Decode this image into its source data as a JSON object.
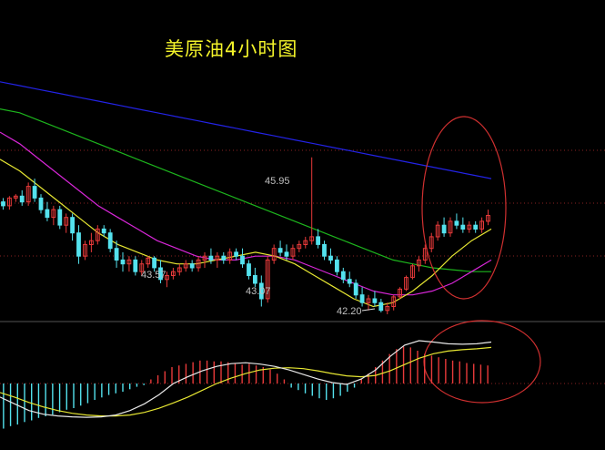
{
  "title": "美原油4小时图",
  "colors": {
    "background": "#000000",
    "up_candle": "#e83a3a",
    "down_candle": "#54e2ee",
    "ma_blue": "#2323e6",
    "ma_green": "#1db51d",
    "ma_magenta": "#d726d7",
    "ma_yellow": "#e6e632",
    "ma_white": "#e8e8e8",
    "grid": "#8a2222",
    "label": "#c0c0c0",
    "ellipse": "#d03030"
  },
  "chart_data": [
    {
      "type": "candlestick",
      "title": "美原油4小时图",
      "annotations": [
        {
          "text": "45.95",
          "at_value": 45.95
        },
        {
          "text": "43.57",
          "at_value": 43.57
        },
        {
          "text": "43.07",
          "at_value": 43.07
        },
        {
          "text": "42.20",
          "at_value": 42.2
        }
      ],
      "ylim": [
        41.9,
        48.6
      ],
      "grid": true,
      "candles": [
        [
          44.8,
          44.9,
          44.6,
          44.7
        ],
        [
          44.7,
          44.95,
          44.6,
          44.9
        ],
        [
          44.9,
          45.0,
          44.8,
          44.95
        ],
        [
          44.95,
          45.1,
          44.7,
          44.8
        ],
        [
          44.8,
          45.3,
          44.7,
          45.2
        ],
        [
          45.2,
          45.4,
          44.8,
          44.9
        ],
        [
          44.9,
          45.0,
          44.5,
          44.6
        ],
        [
          44.6,
          44.8,
          44.3,
          44.4
        ],
        [
          44.4,
          44.7,
          44.2,
          44.6
        ],
        [
          44.6,
          44.7,
          44.1,
          44.2
        ],
        [
          44.2,
          44.5,
          44.0,
          44.4
        ],
        [
          44.4,
          44.5,
          43.8,
          44.0
        ],
        [
          44.0,
          44.2,
          43.2,
          43.4
        ],
        [
          43.4,
          43.8,
          43.3,
          43.7
        ],
        [
          43.7,
          44.0,
          43.5,
          43.8
        ],
        [
          43.8,
          44.2,
          43.7,
          44.1
        ],
        [
          44.1,
          44.2,
          43.9,
          44.0
        ],
        [
          44.0,
          44.1,
          43.5,
          43.6
        ],
        [
          43.6,
          43.8,
          43.1,
          43.3
        ],
        [
          43.3,
          43.5,
          43.0,
          43.2
        ],
        [
          43.2,
          43.4,
          43.0,
          43.3
        ],
        [
          43.3,
          43.4,
          42.9,
          43.0
        ],
        [
          43.0,
          43.3,
          42.9,
          43.2
        ],
        [
          43.2,
          43.4,
          43.1,
          43.35
        ],
        [
          43.35,
          43.4,
          43.0,
          43.1
        ],
        [
          43.1,
          43.3,
          42.7,
          42.8
        ],
        [
          42.8,
          43.0,
          42.6,
          42.9
        ],
        [
          42.9,
          43.1,
          42.8,
          43.0
        ],
        [
          43.0,
          43.2,
          42.9,
          43.1
        ],
        [
          43.1,
          43.3,
          43.0,
          43.2
        ],
        [
          43.2,
          43.3,
          43.0,
          43.1
        ],
        [
          43.1,
          43.4,
          43.0,
          43.3
        ],
        [
          43.3,
          43.5,
          43.1,
          43.4
        ],
        [
          43.4,
          43.6,
          43.2,
          43.3
        ],
        [
          43.3,
          43.5,
          43.1,
          43.4
        ],
        [
          43.4,
          43.5,
          43.2,
          43.3
        ],
        [
          43.3,
          43.6,
          43.2,
          43.5
        ],
        [
          43.5,
          43.6,
          43.3,
          43.4
        ],
        [
          43.4,
          43.6,
          43.1,
          43.2
        ],
        [
          43.2,
          43.3,
          42.8,
          42.9
        ],
        [
          42.9,
          43.1,
          42.6,
          42.7
        ],
        [
          42.7,
          42.9,
          42.1,
          42.3
        ],
        [
          42.3,
          43.4,
          42.2,
          43.3
        ],
        [
          43.3,
          43.7,
          43.2,
          43.6
        ],
        [
          43.6,
          43.8,
          43.4,
          43.5
        ],
        [
          43.5,
          43.7,
          43.3,
          43.4
        ],
        [
          43.4,
          43.7,
          43.3,
          43.6
        ],
        [
          43.6,
          43.8,
          43.5,
          43.7
        ],
        [
          43.7,
          43.9,
          43.6,
          43.8
        ],
        [
          43.8,
          45.95,
          43.7,
          43.9
        ],
        [
          43.9,
          44.1,
          43.6,
          43.7
        ],
        [
          43.7,
          43.8,
          43.3,
          43.4
        ],
        [
          43.4,
          43.6,
          43.2,
          43.3
        ],
        [
          43.3,
          43.4,
          42.9,
          43.0
        ],
        [
          43.0,
          43.1,
          42.7,
          42.8
        ],
        [
          42.8,
          43.0,
          42.6,
          42.7
        ],
        [
          42.7,
          42.8,
          42.3,
          42.4
        ],
        [
          42.4,
          42.6,
          42.1,
          42.2
        ],
        [
          42.2,
          42.4,
          42.0,
          42.3
        ],
        [
          42.3,
          42.5,
          42.1,
          42.2
        ],
        [
          42.2,
          42.3,
          41.95,
          42.0
        ],
        [
          42.0,
          42.2,
          41.9,
          42.1
        ],
        [
          42.1,
          42.4,
          42.0,
          42.35
        ],
        [
          42.35,
          42.6,
          42.3,
          42.55
        ],
        [
          42.55,
          42.9,
          42.5,
          42.85
        ],
        [
          42.85,
          43.2,
          42.8,
          43.15
        ],
        [
          43.15,
          43.4,
          43.0,
          43.3
        ],
        [
          43.3,
          43.7,
          43.2,
          43.6
        ],
        [
          43.6,
          44.0,
          43.5,
          43.9
        ],
        [
          43.9,
          44.3,
          43.8,
          44.2
        ],
        [
          44.2,
          44.4,
          43.9,
          44.0
        ],
        [
          44.0,
          44.4,
          43.9,
          44.3
        ],
        [
          44.3,
          44.5,
          44.1,
          44.2
        ],
        [
          44.2,
          44.4,
          44.0,
          44.1
        ],
        [
          44.1,
          44.3,
          44.0,
          44.2
        ],
        [
          44.2,
          44.3,
          44.0,
          44.1
        ],
        [
          44.1,
          44.4,
          44.0,
          44.3
        ],
        [
          44.3,
          44.6,
          44.2,
          44.45
        ]
      ],
      "moving_averages": [
        {
          "color": "blue",
          "values": [
            47.9,
            47.8,
            47.7,
            47.6,
            47.5,
            47.4,
            47.3,
            47.2,
            47.1,
            47.0,
            46.9,
            46.8,
            46.7,
            46.6,
            46.5,
            46.4,
            46.3,
            46.2,
            46.1,
            46.0,
            45.9,
            45.8,
            45.7,
            45.6,
            45.5,
            45.4
          ]
        },
        {
          "color": "green",
          "values": [
            47.2,
            47.1,
            46.9,
            46.7,
            46.5,
            46.3,
            46.1,
            45.9,
            45.7,
            45.5,
            45.3,
            45.1,
            44.9,
            44.7,
            44.5,
            44.3,
            44.1,
            43.9,
            43.7,
            43.5,
            43.3,
            43.2,
            43.1,
            43.05,
            43.0,
            43.0
          ]
        },
        {
          "color": "magenta",
          "values": [
            46.6,
            46.3,
            45.9,
            45.5,
            45.1,
            44.7,
            44.4,
            44.1,
            43.8,
            43.6,
            43.4,
            43.3,
            43.3,
            43.4,
            43.4,
            43.3,
            43.1,
            42.9,
            42.7,
            42.5,
            42.4,
            42.4,
            42.5,
            42.7,
            43.0,
            43.3
          ]
        },
        {
          "color": "yellow",
          "values": [
            45.9,
            45.6,
            45.2,
            44.8,
            44.4,
            44.0,
            43.7,
            43.5,
            43.3,
            43.2,
            43.2,
            43.3,
            43.4,
            43.5,
            43.4,
            43.2,
            42.9,
            42.6,
            42.3,
            42.1,
            42.2,
            42.5,
            42.9,
            43.4,
            43.8,
            44.1
          ]
        }
      ]
    },
    {
      "type": "macd",
      "histogram": [
        -0.55,
        -0.52,
        -0.5,
        -0.47,
        -0.45,
        -0.42,
        -0.4,
        -0.38,
        -0.35,
        -0.32,
        -0.3,
        -0.27,
        -0.24,
        -0.2,
        -0.17,
        -0.14,
        -0.12,
        -0.1,
        -0.07,
        -0.04,
        -0.02,
        0.05,
        0.1,
        0.15,
        0.2,
        0.22,
        0.24,
        0.26,
        0.28,
        0.28,
        0.27,
        0.27,
        0.26,
        0.25,
        0.23,
        0.24,
        0.22,
        0.2,
        0.17,
        0.12,
        0.05,
        -0.05,
        -0.08,
        -0.12,
        -0.15,
        -0.18,
        -0.2,
        -0.18,
        -0.15,
        -0.1,
        -0.05,
        0.05,
        0.12,
        0.2,
        0.28,
        0.36,
        0.42,
        0.45,
        0.44,
        0.4,
        0.36,
        0.34,
        0.32,
        0.3,
        0.28,
        0.27,
        0.25,
        0.24,
        0.23,
        0.22
      ],
      "dif": [
        -0.3,
        -0.45,
        -0.6,
        -0.68,
        -0.72,
        -0.74,
        -0.75,
        -0.74,
        -0.7,
        -0.6,
        -0.45,
        -0.25,
        0.0,
        0.15,
        0.28,
        0.38,
        0.44,
        0.46,
        0.43,
        0.38,
        0.3,
        0.2,
        0.1,
        0.02,
        -0.02,
        0.1,
        0.3,
        0.6,
        0.85,
        0.95,
        0.92,
        0.88,
        0.87,
        0.88,
        0.92
      ],
      "dea": [
        -0.2,
        -0.3,
        -0.42,
        -0.52,
        -0.6,
        -0.66,
        -0.7,
        -0.72,
        -0.72,
        -0.7,
        -0.64,
        -0.55,
        -0.43,
        -0.3,
        -0.15,
        0.0,
        0.12,
        0.22,
        0.3,
        0.34,
        0.35,
        0.33,
        0.28,
        0.22,
        0.17,
        0.15,
        0.18,
        0.28,
        0.42,
        0.56,
        0.66,
        0.72,
        0.75,
        0.77,
        0.8
      ]
    }
  ]
}
